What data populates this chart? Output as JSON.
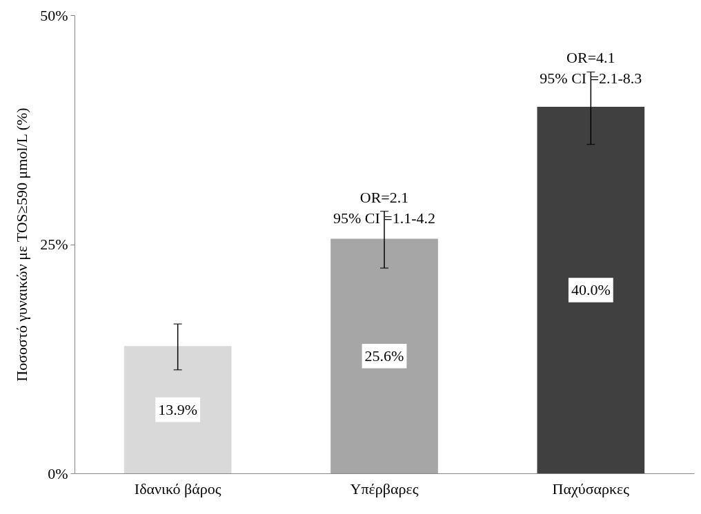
{
  "chart_data": {
    "type": "bar",
    "ylabel": "Ποσοστό γυναικών με TOS≥590 μmol/L (%)",
    "categories": [
      "Ιδανικό βάρος",
      "Υπέρβαρες",
      "Παχύσαρκες"
    ],
    "values": [
      13.9,
      25.6,
      40.0
    ],
    "colors": [
      "#d9d9d9",
      "#a6a6a6",
      "#404040"
    ],
    "errors": [
      [
        11.3,
        16.3
      ],
      [
        22.4,
        28.6
      ],
      [
        35.9,
        43.8
      ]
    ],
    "value_labels": [
      "13.9%",
      "25.6%",
      "40.0%"
    ],
    "ylim": [
      0,
      50
    ],
    "yticks": [
      {
        "value": 0,
        "label": "0%"
      },
      {
        "value": 25,
        "label": "25%"
      },
      {
        "value": 50,
        "label": "50%"
      }
    ],
    "annotations": [
      "OR=2.1\n95% CI =1.1-4.2",
      "OR=4.1\n95% CI =2.1-8.3"
    ],
    "grid": false,
    "legend": false
  }
}
